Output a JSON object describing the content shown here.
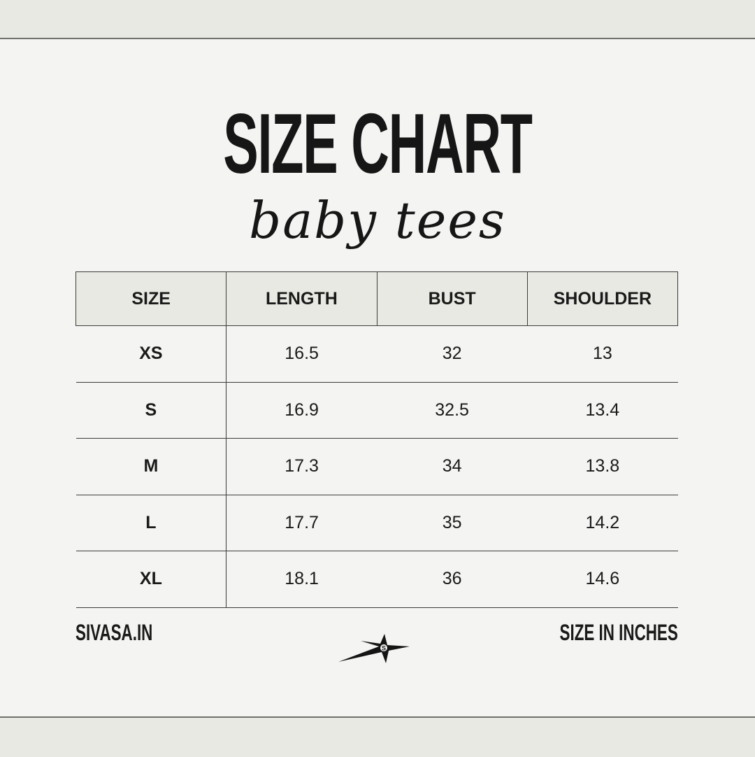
{
  "title": "SIZE CHART",
  "subtitle": "baby tees",
  "table": {
    "headers": [
      "SIZE",
      "LENGTH",
      "BUST",
      "SHOULDER"
    ],
    "rows": [
      [
        "XS",
        "16.5",
        "32",
        "13"
      ],
      [
        "S",
        "16.9",
        "32.5",
        "13.4"
      ],
      [
        "M",
        "17.3",
        "34",
        "13.8"
      ],
      [
        "L",
        "17.7",
        "35",
        "14.2"
      ],
      [
        "XL",
        "18.1",
        "36",
        "14.6"
      ]
    ]
  },
  "footer": {
    "website": "SIVASA.IN",
    "unit_note": "SIZE IN INCHES",
    "logo_icon": "star-s-logo",
    "logo_letter": "S"
  },
  "colors": {
    "background": "#f4f4f2",
    "band": "#e9e9e3",
    "text": "#1a1a1a"
  }
}
